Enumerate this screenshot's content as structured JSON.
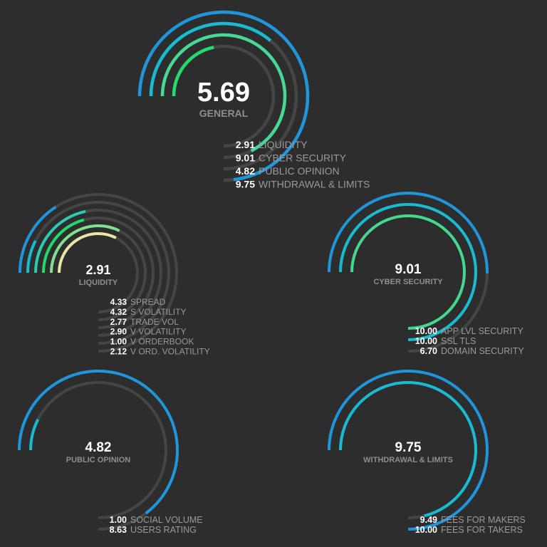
{
  "colors": {
    "background": "#2d2d2d",
    "track": "#454545",
    "blue": "#1e96dc",
    "cyan": "#18bcd0",
    "teal": "#2ec9b0",
    "green": "#42d98c",
    "bright_green": "#22dd6a",
    "mint": "#7fe090",
    "yellow_green": "#c8e684",
    "pale_yellow": "#e8e6a4"
  },
  "chart_data": [
    {
      "type": "radial_bar",
      "title": "GENERAL",
      "score": "5.69",
      "max": 10,
      "series": [
        {
          "name": "WITHDRAWAL & LIMITS",
          "label": "9.75",
          "value": 9.75,
          "color": "#1e96dc"
        },
        {
          "name": "PUBLIC OPINION",
          "label": "4.82",
          "value": 4.82,
          "color": "#18bcd0"
        },
        {
          "name": "CYBER SECURITY",
          "label": "9.01",
          "value": 9.01,
          "color": "#46d994"
        },
        {
          "name": "LIQUIDITY",
          "label": "2.91",
          "value": 2.91,
          "color": "#22dd6a"
        }
      ],
      "legend": [
        {
          "value": "2.91",
          "label": "LIQUIDITY"
        },
        {
          "value": "9.01",
          "label": "CYBER SECURITY"
        },
        {
          "value": "4.82",
          "label": "PUBLIC OPINION"
        },
        {
          "value": "9.75",
          "label": "WITHDRAWAL & LIMITS"
        }
      ]
    },
    {
      "type": "radial_bar",
      "title": "LIQUIDITY",
      "score": "2.91",
      "max": 10,
      "series": [
        {
          "name": "V ORD. VOLATILITY",
          "label": "2.12",
          "value": 2.12,
          "color": "#1e96dc"
        },
        {
          "name": "V ORDERBOOK",
          "label": "1.00",
          "value": 1.0,
          "color": "#18bcd0"
        },
        {
          "name": "V VOLATILITY",
          "label": "2.90",
          "value": 2.9,
          "color": "#2ec9b0"
        },
        {
          "name": "TRADE VOL",
          "label": "2.77",
          "value": 2.77,
          "color": "#22d86e"
        },
        {
          "name": "S VOLATILITY",
          "label": "4.32",
          "value": 4.32,
          "color": "#7fe090"
        },
        {
          "name": "SPREAD",
          "label": "4.33",
          "value": 4.33,
          "color": "#e8e6a4"
        }
      ],
      "legend": [
        {
          "value": "4.33",
          "label": "SPREAD"
        },
        {
          "value": "4.32",
          "label": "S VOLATILITY"
        },
        {
          "value": "2.77",
          "label": "TRADE VOL"
        },
        {
          "value": "2.90",
          "label": "V VOLATILITY"
        },
        {
          "value": "1.00",
          "label": "V ORDERBOOK"
        },
        {
          "value": "2.12",
          "label": "V ORD. VOLATILITY"
        }
      ]
    },
    {
      "type": "radial_bar",
      "title": "CYBER SECURITY",
      "score": "9.01",
      "max": 10,
      "series": [
        {
          "name": "DOMAIN SECURITY",
          "label": "6.70",
          "value": 6.7,
          "color": "#1e96dc"
        },
        {
          "name": "SSL TLS",
          "label": "10.00",
          "value": 10.0,
          "color": "#18bcd0"
        },
        {
          "name": "APP LVL SECURITY",
          "label": "10.00",
          "value": 10.0,
          "color": "#42d98c"
        }
      ],
      "legend": [
        {
          "value": "10.00",
          "label": "APP LVL SECURITY"
        },
        {
          "value": "10.00",
          "label": "SSL TLS"
        },
        {
          "value": "6.70",
          "label": "DOMAIN SECURITY"
        }
      ]
    },
    {
      "type": "radial_bar",
      "title": "PUBLIC OPINION",
      "score": "4.82",
      "max": 10,
      "series": [
        {
          "name": "USERS RATING",
          "label": "8.63",
          "value": 8.63,
          "color": "#1e96dc"
        },
        {
          "name": "SOCIAL VOLUME",
          "label": "1.00",
          "value": 1.0,
          "color": "#18bcd0"
        }
      ],
      "legend": [
        {
          "value": "1.00",
          "label": "SOCIAL VOLUME"
        },
        {
          "value": "8.63",
          "label": "USERS RATING"
        }
      ]
    },
    {
      "type": "radial_bar",
      "title": "WITHDRAWAL & LIMITS",
      "score": "9.75",
      "max": 10,
      "series": [
        {
          "name": "FEES FOR TAKERS",
          "label": "10.00",
          "value": 10.0,
          "color": "#1e96dc"
        },
        {
          "name": "FEES FOR MAKERS",
          "label": "9.49",
          "value": 9.49,
          "color": "#18bcd0"
        }
      ],
      "legend": [
        {
          "value": "9.49",
          "label": "FEES FOR MAKERS"
        },
        {
          "value": "10.00",
          "label": "FEES FOR TAKERS"
        }
      ]
    }
  ]
}
